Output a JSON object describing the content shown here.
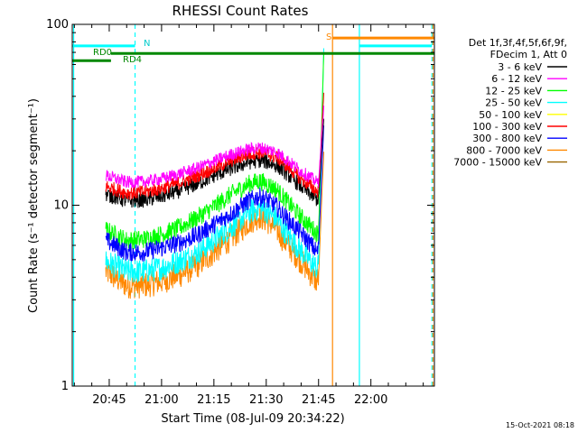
{
  "chart_data": {
    "type": "line",
    "title": "RHESSI Count Rates",
    "xlabel": "Start Time (08-Jul-09 20:34:22)",
    "ylabel": "Count Rate (s⁻¹ detector segment⁻¹)",
    "x_tick_labels": [
      "20:45",
      "21:00",
      "21:15",
      "21:30",
      "21:45",
      "22:00"
    ],
    "x_ticks_minutes_after_2030": [
      15,
      30,
      45,
      60,
      75,
      90
    ],
    "xlim_minutes_after_2030": [
      4.4,
      108.2
    ],
    "ylim": [
      1,
      100
    ],
    "y_scale": "log",
    "y_tick_labels": [
      "1",
      "10",
      "100"
    ],
    "legend_header": [
      "Det 1f,3f,4f,5f,6f,9f,",
      "FDecim 1, Att 0"
    ],
    "legend_placement": "right",
    "series": [
      {
        "name": "3 - 6 keV",
        "color": "#000000",
        "x": [
          14,
          20,
          25,
          30,
          35,
          40,
          45,
          50,
          55,
          58,
          60,
          63,
          65,
          70,
          73,
          74.5,
          75,
          76.5
        ],
        "values": [
          11.5,
          10.6,
          10.7,
          11.2,
          12.0,
          13.1,
          14.6,
          16.0,
          17.3,
          17.7,
          17.4,
          16.6,
          15.5,
          12.7,
          11.4,
          10.8,
          11.0,
          30
        ]
      },
      {
        "name": "6 - 12 keV",
        "color": "#ff00ff",
        "x": [
          14,
          20,
          25,
          30,
          35,
          40,
          45,
          50,
          55,
          58,
          60,
          63,
          65,
          70,
          73,
          74.5,
          75,
          76.5
        ],
        "values": [
          14.6,
          13.4,
          13.5,
          14.0,
          14.9,
          16.0,
          17.5,
          19.1,
          20.4,
          20.8,
          20.5,
          19.7,
          18.4,
          15.4,
          14.1,
          13.4,
          13.6,
          35
        ]
      },
      {
        "name": "12 - 25 keV",
        "color": "#00ff00",
        "x": [
          14,
          20,
          25,
          30,
          35,
          40,
          45,
          50,
          55,
          58,
          60,
          63,
          65,
          70,
          73,
          74.5,
          75,
          76.5
        ],
        "values": [
          7.3,
          6.4,
          6.5,
          6.9,
          7.5,
          8.5,
          9.8,
          11.5,
          13.1,
          13.6,
          13.2,
          12.2,
          11.0,
          8.6,
          7.5,
          7.0,
          7.2,
          70
        ]
      },
      {
        "name": "25 - 50 keV",
        "color": "#00ffff",
        "x": [
          14,
          20,
          25,
          30,
          35,
          40,
          45,
          50,
          55,
          58,
          60,
          63,
          65,
          70,
          73,
          74.5,
          75,
          76.5
        ],
        "values": [
          4.9,
          4.3,
          4.3,
          4.5,
          4.9,
          5.4,
          6.4,
          7.6,
          9.1,
          9.7,
          9.3,
          8.4,
          7.3,
          5.6,
          4.8,
          4.5,
          4.6,
          75
        ]
      },
      {
        "name": "50 - 100 keV",
        "color": "#ffff00",
        "x": [],
        "values": []
      },
      {
        "name": "100 - 300 keV",
        "color": "#ff0000",
        "x": [
          14,
          20,
          25,
          30,
          35,
          40,
          45,
          50,
          55,
          58,
          60,
          63,
          65,
          70,
          73,
          74.5,
          75,
          76.5
        ],
        "values": [
          12.7,
          11.7,
          11.8,
          12.4,
          13.3,
          14.5,
          16.0,
          17.7,
          19.2,
          19.6,
          19.3,
          18.4,
          17.1,
          14.0,
          12.6,
          11.9,
          12.2,
          42
        ]
      },
      {
        "name": "300 - 800 keV",
        "color": "#0000ff",
        "x": [
          14,
          20,
          25,
          30,
          35,
          40,
          45,
          50,
          55,
          58,
          60,
          63,
          65,
          70,
          73,
          74.5,
          75,
          76.5
        ],
        "values": [
          6.4,
          5.5,
          5.5,
          5.8,
          6.2,
          6.8,
          7.8,
          9.0,
          10.6,
          11.2,
          10.8,
          9.8,
          8.8,
          7.0,
          6.0,
          5.5,
          5.8,
          28
        ]
      },
      {
        "name": "800 - 7000 keV",
        "color": "#ff8800",
        "x": [
          14,
          20,
          25,
          30,
          35,
          40,
          45,
          50,
          55,
          58,
          60,
          63,
          65,
          70,
          73,
          74.5,
          75,
          76.5
        ],
        "values": [
          4.3,
          3.6,
          3.6,
          3.8,
          4.1,
          4.6,
          5.5,
          6.6,
          8.1,
          8.7,
          8.3,
          7.4,
          6.4,
          4.9,
          4.1,
          3.8,
          4.0,
          20
        ]
      },
      {
        "name": "7000 - 15000 keV",
        "color": "#996600",
        "x": [],
        "values": []
      }
    ],
    "attenuator_lines": [
      {
        "label": "RD0",
        "color": "#008800",
        "x": [
          4.4,
          15.5
        ],
        "y": 63
      },
      {
        "label": "RD4",
        "color": "#008800",
        "x": [
          15.5,
          108.2
        ],
        "y": 69
      }
    ],
    "night_lines": [
      {
        "label": "N",
        "color": "#00ffff",
        "x": [
          4.4,
          22.4
        ],
        "y": 76
      },
      {
        "label": "",
        "color": "#00ffff",
        "x": [
          86.7,
          107.5
        ],
        "y": 76
      }
    ],
    "saa_line": {
      "label": "S",
      "color": "#ff8800",
      "x": [
        79,
        108.2
      ],
      "y": 84
    },
    "vertical_markers": [
      {
        "x": 4.8,
        "color": "#00ffff",
        "style": "solid"
      },
      {
        "x": 22.4,
        "color": "#00ffff",
        "style": "dashed"
      },
      {
        "x": 79,
        "color": "#ff8800",
        "style": "solid"
      },
      {
        "x": 86.7,
        "color": "#00ffff",
        "style": "solid"
      },
      {
        "x": 107.5,
        "color": "#00ffff",
        "style": "dashed"
      },
      {
        "x": 107.8,
        "color": "#ff8800",
        "style": "dashed"
      }
    ],
    "grid": false
  },
  "footer_timestamp": "15-Oct-2021 08:18"
}
